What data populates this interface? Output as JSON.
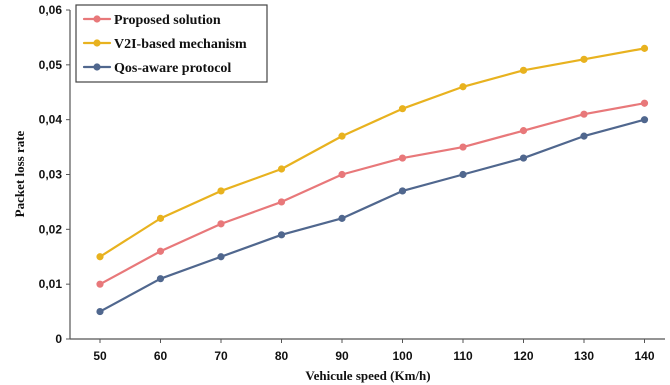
{
  "chart_data": {
    "type": "line",
    "xlabel": "Vehicule speed (Km/h)",
    "ylabel": "Packet loss rate",
    "x": [
      50,
      60,
      70,
      80,
      90,
      100,
      110,
      120,
      130,
      140
    ],
    "x_tick_labels": [
      "50",
      "60",
      "70",
      "80",
      "90",
      "100",
      "110",
      "120",
      "130",
      "140"
    ],
    "y_tick_labels": [
      "0",
      "0,01",
      "0,02",
      "0,03",
      "0,04",
      "0,05",
      "0,06"
    ],
    "ylim": [
      0,
      0.06
    ],
    "grid": false,
    "legend_position": "top-left",
    "series": [
      {
        "name": "Proposed solution",
        "color": "#e8787a",
        "values": [
          0.01,
          0.016,
          0.021,
          0.025,
          0.03,
          0.033,
          0.035,
          0.038,
          0.041,
          0.043
        ]
      },
      {
        "name": "V2I-based mechanism",
        "color": "#e8b21f",
        "values": [
          0.015,
          0.022,
          0.027,
          0.031,
          0.037,
          0.042,
          0.046,
          0.049,
          0.051,
          0.053
        ]
      },
      {
        "name": "Qos-aware protocol",
        "color": "#50678e",
        "values": [
          0.005,
          0.011,
          0.015,
          0.019,
          0.022,
          0.027,
          0.03,
          0.033,
          0.037,
          0.04
        ]
      }
    ]
  }
}
